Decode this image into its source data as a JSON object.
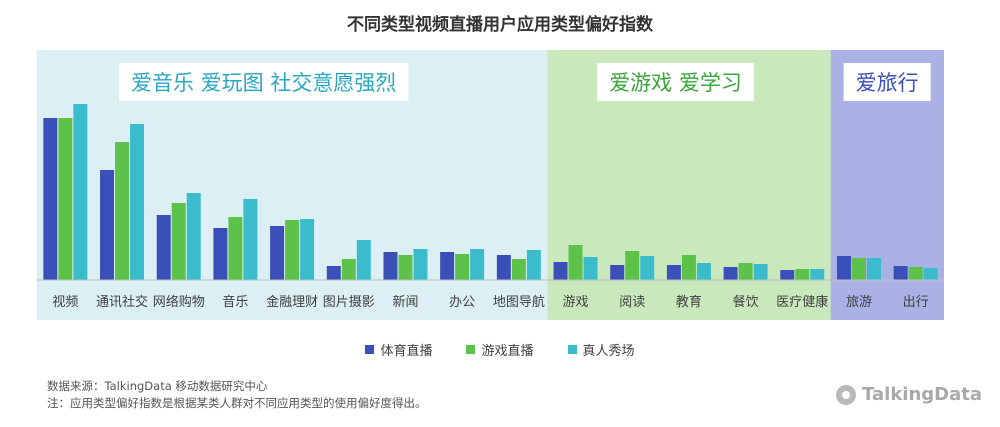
{
  "title": "不同类型视频直播用户应用类型偏好指数",
  "colors": {
    "series": [
      "#3b4fb8",
      "#5cc24a",
      "#3bbccc"
    ],
    "group_backgrounds": [
      "#dbeff5",
      "#c9e9bd",
      "#a9b1e5"
    ],
    "group_label_text": [
      "#2aa7c2",
      "#3aa53a",
      "#3b4fb8"
    ]
  },
  "chart_data": {
    "type": "bar",
    "title": "不同类型视频直播用户应用类型偏好指数",
    "categories": [
      "视频",
      "通讯社交",
      "网络购物",
      "音乐",
      "金融理财",
      "图片摄影",
      "新闻",
      "办公",
      "地图导航",
      "游戏",
      "阅读",
      "教育",
      "餐饮",
      "医疗健康",
      "旅游",
      "出行"
    ],
    "series": [
      {
        "name": "体育直播",
        "values": [
          162,
          110,
          65,
          52,
          54,
          14,
          28,
          28,
          25,
          18,
          15,
          15,
          13,
          10,
          24,
          14
        ]
      },
      {
        "name": "游戏直播",
        "values": [
          162,
          138,
          77,
          63,
          60,
          21,
          25,
          26,
          21,
          35,
          29,
          25,
          17,
          11,
          22,
          13
        ]
      },
      {
        "name": "真人秀场",
        "values": [
          176,
          156,
          87,
          81,
          61,
          40,
          31,
          31,
          30,
          23,
          24,
          17,
          16,
          11,
          22,
          12
        ]
      }
    ],
    "ylim": [
      0,
      190
    ],
    "groups": [
      {
        "label": "爱音乐  爱玩图  社交意愿强烈",
        "start": 0,
        "end": 8
      },
      {
        "label": "爱游戏  爱学习",
        "start": 9,
        "end": 13
      },
      {
        "label": "爱旅行",
        "start": 14,
        "end": 15
      }
    ],
    "legend_position": "bottom"
  },
  "legend": [
    "体育直播",
    "游戏直播",
    "真人秀场"
  ],
  "footer": {
    "source": "数据来源：TalkingData 移动数据研究中心",
    "note": "注：应用类型偏好指数是根据某类人群对不同应用类型的使用偏好度得出。"
  },
  "brand": "TalkingData"
}
